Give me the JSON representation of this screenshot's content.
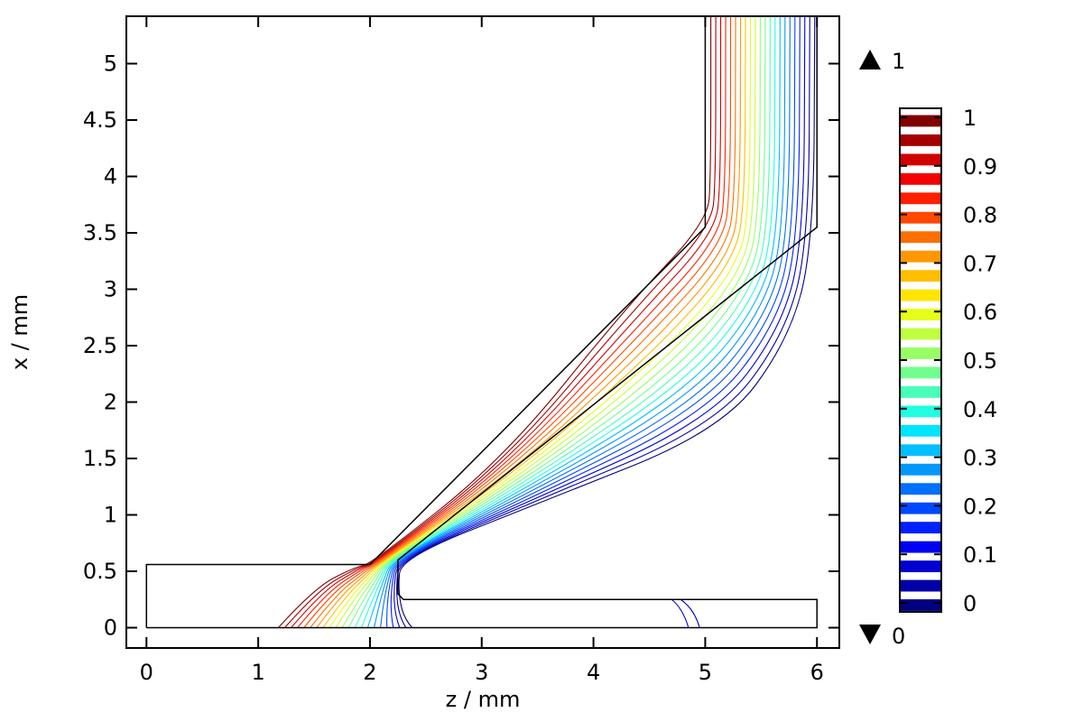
{
  "chart_data": {
    "type": "contour",
    "xlabel": "z / mm",
    "ylabel": "x / mm",
    "xlim": [
      -0.18,
      6.2
    ],
    "ylim": [
      -0.18,
      5.42
    ],
    "x_ticks": [
      0,
      1,
      2,
      3,
      4,
      5,
      6
    ],
    "y_ticks": [
      0,
      0.5,
      1,
      1.5,
      2,
      2.5,
      3,
      3.5,
      4,
      4.5,
      5
    ],
    "x_tick_labels": [
      "0",
      "1",
      "2",
      "3",
      "4",
      "5",
      "6"
    ],
    "y_tick_labels": [
      "0",
      "0.5",
      "1",
      "1.5",
      "2",
      "2.5",
      "3",
      "3.5",
      "4",
      "4.5",
      "5"
    ],
    "colorbar": {
      "min": 0,
      "max": 1,
      "max_label": "1",
      "min_label": "0",
      "tick_values": [
        0,
        0.1,
        0.2,
        0.3,
        0.4,
        0.5,
        0.6,
        0.7,
        0.8,
        0.9,
        1
      ],
      "tick_labels": [
        "0",
        "0.1",
        "0.2",
        "0.3",
        "0.4",
        "0.5",
        "0.6",
        "0.7",
        "0.8",
        "0.9",
        "1"
      ],
      "levels": 21,
      "colors": [
        "#000080",
        "#0000a6",
        "#0000d0",
        "#0000f7",
        "#0020ff",
        "#0048ff",
        "#0070ff",
        "#0098ff",
        "#00bfff",
        "#00e5ff",
        "#20ffdf",
        "#48ffb7",
        "#70ff8f",
        "#98ff67",
        "#bfff40",
        "#e5ff1a",
        "#ffe500",
        "#ffbf00",
        "#ff9800",
        "#ff7000",
        "#ff4800",
        "#ff2000",
        "#f70000",
        "#d00000",
        "#a60000",
        "#800000"
      ]
    },
    "geometry": {
      "outline": [
        [
          0,
          0
        ],
        [
          6,
          0
        ],
        [
          6,
          0.25
        ],
        [
          2.3,
          0.25
        ],
        [
          2.25,
          0.3
        ],
        [
          2.25,
          0.6
        ],
        [
          6,
          3.55
        ],
        [
          6,
          5.42
        ],
        [
          5,
          5.42
        ],
        [
          5,
          3.55
        ],
        [
          2,
          0.56
        ],
        [
          0,
          0.56
        ],
        [
          0,
          0
        ]
      ]
    },
    "contours": [
      {
        "level": 0.0,
        "points": [
          [
            6,
            0.25
          ],
          [
            6,
            3.1
          ],
          [
            5.9,
            3.4
          ],
          [
            5.7,
            2.2
          ],
          [
            5.2,
            1.7
          ],
          [
            2.3,
            0.65
          ],
          [
            2.25,
            0.6
          ],
          [
            2.25,
            0.3
          ],
          [
            2.32,
            0.25
          ],
          [
            6,
            0.25
          ]
        ]
      },
      {
        "level": 0.02,
        "points": [
          [
            4.95,
            0
          ],
          [
            4.9,
            0.15
          ],
          [
            4.75,
            0.25
          ]
        ]
      },
      {
        "level": 0.05,
        "points": [
          [
            4.85,
            0
          ],
          [
            4.8,
            0.15
          ],
          [
            4.7,
            0.25
          ]
        ]
      }
    ]
  }
}
